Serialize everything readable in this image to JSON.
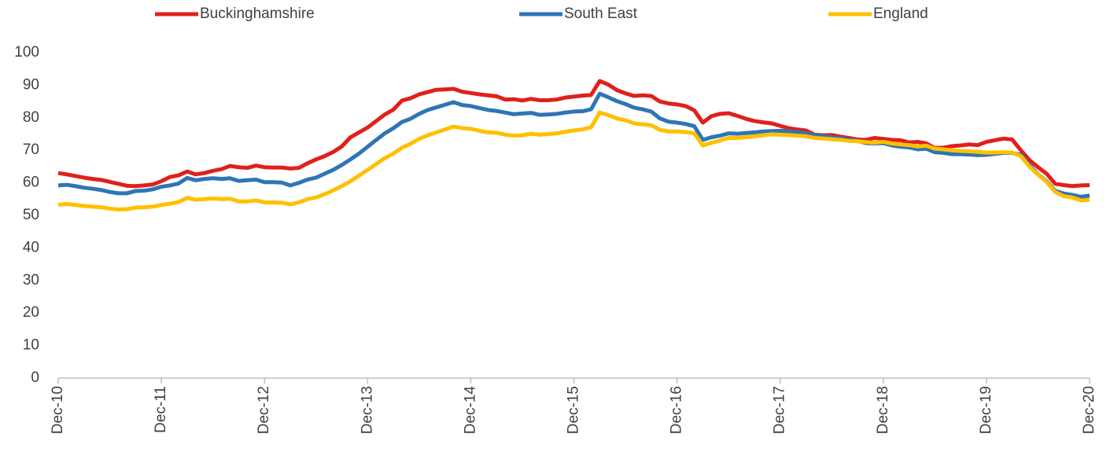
{
  "chart_data": {
    "type": "line",
    "legend": "top",
    "grid": false,
    "categories": [
      "Dec-10",
      null,
      null,
      null,
      null,
      null,
      null,
      null,
      null,
      null,
      null,
      null,
      "Dec-11",
      null,
      null,
      null,
      null,
      null,
      null,
      null,
      null,
      null,
      null,
      null,
      "Dec-12",
      null,
      null,
      null,
      null,
      null,
      null,
      null,
      null,
      null,
      null,
      null,
      "Dec-13",
      null,
      null,
      null,
      null,
      null,
      null,
      null,
      null,
      null,
      null,
      null,
      "Dec-14",
      null,
      null,
      null,
      null,
      null,
      null,
      null,
      null,
      null,
      null,
      null,
      "Dec-15",
      null,
      null,
      null,
      null,
      null,
      null,
      null,
      null,
      null,
      null,
      null,
      "Dec-16",
      null,
      null,
      null,
      null,
      null,
      null,
      null,
      null,
      null,
      null,
      null,
      "Dec-17",
      null,
      null,
      null,
      null,
      null,
      null,
      null,
      null,
      null,
      null,
      null,
      "Dec-18",
      null,
      null,
      null,
      null,
      null,
      null,
      null,
      null,
      null,
      null,
      null,
      "Dec-19",
      null,
      null,
      null,
      null,
      null,
      null,
      null,
      null,
      null,
      null,
      null,
      "Dec-20"
    ],
    "ylim": [
      0,
      100
    ],
    "yticks": [
      0,
      10,
      20,
      30,
      40,
      50,
      60,
      70,
      80,
      90,
      100
    ],
    "series": [
      {
        "name": "Buckinghamshire",
        "color": "#e0201b",
        "values": [
          63,
          62.6,
          62.1,
          61.6,
          61.2,
          60.9,
          60.3,
          59.7,
          59.1,
          59,
          59.2,
          59.5,
          60.5,
          61.8,
          62.3,
          63.5,
          62.6,
          63,
          63.7,
          64.2,
          65.2,
          64.8,
          64.6,
          65.3,
          64.8,
          64.7,
          64.7,
          64.4,
          64.6,
          66,
          67.2,
          68.2,
          69.5,
          71.2,
          74,
          75.5,
          77,
          79,
          81,
          82.5,
          85.3,
          86,
          87.2,
          87.9,
          88.6,
          88.7,
          88.9,
          88,
          87.6,
          87.2,
          86.9,
          86.6,
          85.6,
          85.7,
          85.3,
          85.8,
          85.4,
          85.4,
          85.6,
          86.2,
          86.5,
          86.8,
          87,
          91.3,
          90.2,
          88.5,
          87.5,
          86.7,
          86.9,
          86.7,
          85,
          84.4,
          84.1,
          83.6,
          82.3,
          78.5,
          80.5,
          81.2,
          81.4,
          80.6,
          79.7,
          79,
          78.6,
          78.3,
          77.5,
          76.8,
          76.4,
          76.1,
          74.8,
          74.6,
          74.7,
          74.2,
          73.8,
          73.3,
          73.2,
          73.8,
          73.5,
          73.2,
          73.1,
          72.4,
          72.6,
          72.1,
          70.7,
          70.8,
          71.3,
          71.5,
          71.8,
          71.6,
          72.6,
          73.1,
          73.6,
          73.3,
          70,
          67,
          64.8,
          62.8,
          59.7,
          59.3,
          59,
          59.2,
          59.3
        ]
      },
      {
        "name": "South East",
        "color": "#2e75b6",
        "values": [
          59.2,
          59.4,
          59,
          58.5,
          58.2,
          57.8,
          57.2,
          56.8,
          56.8,
          57.5,
          57.6,
          58,
          58.8,
          59.2,
          59.8,
          61.5,
          60.8,
          61.2,
          61.4,
          61.2,
          61.4,
          60.6,
          60.8,
          61,
          60.2,
          60.2,
          60.1,
          59.2,
          60,
          61,
          61.6,
          62.8,
          64,
          65.5,
          67.2,
          69,
          71.1,
          73.2,
          75.2,
          76.8,
          78.7,
          79.7,
          81.2,
          82.4,
          83.2,
          84,
          84.8,
          83.9,
          83.6,
          83,
          82.4,
          82.1,
          81.6,
          81.1,
          81.3,
          81.5,
          80.9,
          81,
          81.2,
          81.6,
          81.9,
          82,
          82.6,
          87.4,
          86.3,
          85.1,
          84.2,
          83.1,
          82.6,
          81.9,
          79.8,
          78.8,
          78.5,
          78.1,
          77.4,
          73.2,
          74,
          74.5,
          75.2,
          75.1,
          75.3,
          75.5,
          75.8,
          75.9,
          76,
          75.8,
          75.6,
          75.2,
          74.6,
          74.3,
          74,
          73.7,
          73.3,
          72.9,
          72.2,
          72.1,
          72.2,
          71.5,
          71.1,
          70.9,
          70.3,
          70.5,
          69.4,
          69.2,
          68.8,
          68.8,
          68.7,
          68.5,
          68.6,
          68.9,
          69.2,
          69.2,
          68.6,
          65.5,
          62.6,
          60.5,
          57.5,
          56.7,
          56.3,
          55.7,
          56.1
        ]
      },
      {
        "name": "England",
        "color": "#ffc000",
        "values": [
          53.3,
          53.5,
          53.2,
          52.9,
          52.7,
          52.5,
          52.1,
          51.8,
          51.9,
          52.4,
          52.5,
          52.7,
          53.2,
          53.6,
          54.1,
          55.4,
          54.8,
          55,
          55.2,
          55,
          55.1,
          54.3,
          54.3,
          54.6,
          54,
          54,
          53.9,
          53.4,
          54,
          55,
          55.5,
          56.5,
          57.7,
          59,
          60.5,
          62.2,
          64,
          65.8,
          67.6,
          69,
          70.8,
          72,
          73.5,
          74.6,
          75.5,
          76.4,
          77.3,
          76.8,
          76.6,
          76,
          75.5,
          75.4,
          74.8,
          74.5,
          74.6,
          75.1,
          74.8,
          75,
          75.2,
          75.7,
          76.1,
          76.4,
          77.1,
          81.6,
          80.8,
          79.8,
          79.2,
          78.3,
          78,
          77.7,
          76.3,
          75.8,
          75.8,
          75.6,
          75.2,
          71.5,
          72.3,
          73,
          73.8,
          73.8,
          74,
          74.3,
          74.6,
          74.9,
          74.8,
          74.7,
          74.5,
          74.3,
          73.8,
          73.6,
          73.4,
          73.2,
          72.9,
          72.8,
          72.5,
          72.3,
          72.6,
          72.1,
          71.8,
          71.6,
          71.2,
          71.4,
          70.5,
          70.3,
          70,
          69.8,
          69.7,
          69.5,
          69.3,
          69.3,
          69.4,
          69.3,
          68.2,
          65,
          62.5,
          60.3,
          57.2,
          55.9,
          55.5,
          54.6,
          54.8
        ]
      }
    ]
  }
}
